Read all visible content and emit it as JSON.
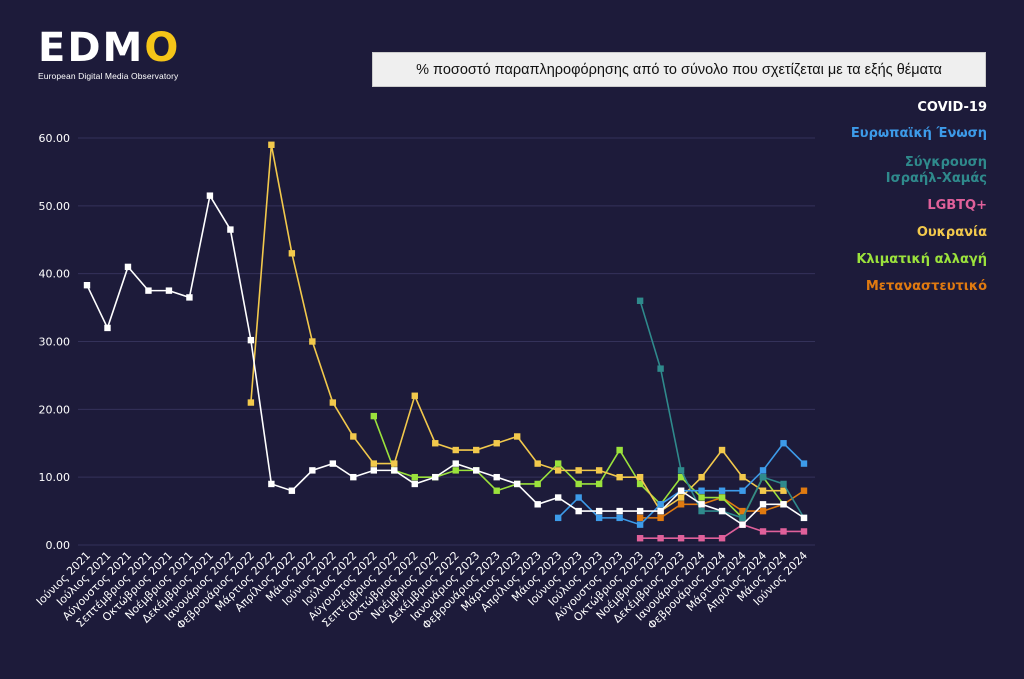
{
  "logo": {
    "text_main": "EDM",
    "text_o": "O",
    "subtitle": "European Digital Media Observatory"
  },
  "title": "% ποσοστό παραπληροφόρησης από το σύνολο που σχετίζεται με τα εξής θέματα",
  "chart_data": {
    "type": "line",
    "title": "% ποσοστό παραπληροφόρησης από το σύνολο που σχετίζεται με τα εξής θέματα",
    "xlabel": "",
    "ylabel": "",
    "ylim": [
      0,
      60
    ],
    "yticks": [
      "0.00",
      "10.00",
      "20.00",
      "30.00",
      "40.00",
      "50.00",
      "60.00"
    ],
    "grid": true,
    "legend_position": "right",
    "categories": [
      "Ιούνιος 2021",
      "Ιούλιος 2021",
      "Αύγουστος 2021",
      "Σεπτέμβριος 2021",
      "Οκτώβριος 2021",
      "Νοέμβριος 2021",
      "Δεκέμβριος 2021",
      "Ιανουάριος 2022",
      "Φεβρουάριος 2022",
      "Μάρτιος 2022",
      "Απρίλιος 2022",
      "Μάιος 2022",
      "Ιούνιος 2022",
      "Ιούλιος 2022",
      "Αύγουστος 2022",
      "Σεπτέμβριος 2022",
      "Οκτώβριος 2022",
      "Νοέμβριος 2022",
      "Δεκέμβριος 2022",
      "Ιανουάριος 2023",
      "Φεβρουάριος 2023",
      "Μάρτιος 2023",
      "Απρίλιος 2023",
      "Μάιος 2023",
      "Ιούνιος 2023",
      "Ιούλιος 2023",
      "Αύγουστος 2023",
      "Οκτώβριος 2023",
      "Νοέμβριος 2023",
      "Δεκέμβριος 2023",
      "Ιανουάριος 2024",
      "Φεβρουάριος 2024",
      "Μάρτιος 2024",
      "Απρίλιος 2024",
      "Μάιος 2024",
      "Ιούνιος 2024"
    ],
    "series": [
      {
        "name": "COVID-19",
        "color": "#ffffff",
        "values": [
          38.3,
          32,
          41,
          37.5,
          37.5,
          36.5,
          51.5,
          46.5,
          30.2,
          9,
          8,
          11,
          12,
          10,
          11,
          11,
          9,
          10,
          12,
          11,
          10,
          9,
          6,
          7,
          5,
          5,
          5,
          5,
          5,
          8,
          6,
          5,
          3,
          6,
          6,
          4
        ]
      },
      {
        "name": "Ευρωπαϊκή Ένωση",
        "color": "#3d9be9",
        "values": [
          null,
          null,
          null,
          null,
          null,
          null,
          null,
          null,
          null,
          null,
          null,
          null,
          null,
          null,
          null,
          null,
          null,
          null,
          null,
          null,
          null,
          null,
          null,
          4,
          7,
          4,
          4,
          3,
          6,
          8,
          8,
          8,
          8,
          11,
          15,
          12
        ]
      },
      {
        "name": "Σύγκρουση Ισραήλ-Χαμάς",
        "color": "#2f8a8c",
        "values": [
          null,
          null,
          null,
          null,
          null,
          null,
          null,
          null,
          null,
          null,
          null,
          null,
          null,
          null,
          null,
          null,
          null,
          null,
          null,
          null,
          null,
          null,
          null,
          null,
          null,
          null,
          null,
          36,
          26,
          11,
          5,
          5,
          4,
          10,
          9,
          4
        ]
      },
      {
        "name": "LGBTQ+",
        "color": "#e0609a",
        "values": [
          null,
          null,
          null,
          null,
          null,
          null,
          null,
          null,
          null,
          null,
          null,
          null,
          null,
          null,
          null,
          null,
          null,
          null,
          null,
          null,
          null,
          null,
          null,
          null,
          null,
          null,
          null,
          1,
          1,
          1,
          1,
          1,
          3,
          2,
          2,
          2
        ]
      },
      {
        "name": "Ουκρανία",
        "color": "#f2c94c",
        "values": [
          null,
          null,
          null,
          null,
          null,
          null,
          null,
          null,
          21,
          59,
          43,
          30,
          21,
          16,
          12,
          12,
          22,
          15,
          14,
          14,
          15,
          16,
          12,
          11,
          11,
          11,
          10,
          10,
          5,
          7,
          10,
          14,
          10,
          8,
          8,
          null
        ]
      },
      {
        "name": "Κλιματική αλλαγή",
        "color": "#9be23c",
        "values": [
          null,
          null,
          null,
          null,
          null,
          null,
          null,
          null,
          null,
          null,
          null,
          null,
          null,
          null,
          19,
          11,
          10,
          10,
          11,
          11,
          8,
          9,
          9,
          12,
          9,
          9,
          14,
          9,
          6,
          10,
          7,
          7,
          4,
          10,
          6,
          null
        ]
      },
      {
        "name": "Μεταναστευτικό",
        "color": "#e07a10",
        "values": [
          null,
          null,
          null,
          null,
          null,
          null,
          null,
          null,
          null,
          null,
          null,
          null,
          null,
          null,
          null,
          null,
          null,
          null,
          null,
          null,
          null,
          null,
          null,
          null,
          null,
          null,
          null,
          4,
          4,
          6,
          6,
          7,
          5,
          5,
          6,
          8
        ]
      }
    ]
  },
  "legend": [
    {
      "label": "COVID-19",
      "color": "#ffffff"
    },
    {
      "label": "Ευρωπαϊκή Ένωση",
      "color": "#3d9be9"
    },
    {
      "label": "Σύγκρουση\nΙσραήλ-Χαμάς",
      "color": "#2f8a8c"
    },
    {
      "label": "LGBTQ+",
      "color": "#e0609a"
    },
    {
      "label": "Ουκρανία",
      "color": "#f2c94c"
    },
    {
      "label": "Κλιματική αλλαγή",
      "color": "#9be23c"
    },
    {
      "label": "Μεταναστευτικό",
      "color": "#e07a10"
    }
  ]
}
